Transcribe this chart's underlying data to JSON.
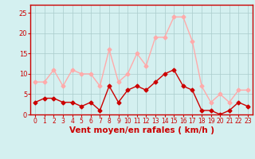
{
  "hours": [
    0,
    1,
    2,
    3,
    4,
    5,
    6,
    7,
    8,
    9,
    10,
    11,
    12,
    13,
    14,
    15,
    16,
    17,
    18,
    19,
    20,
    21,
    22,
    23
  ],
  "wind_avg": [
    3,
    4,
    4,
    3,
    3,
    2,
    3,
    1,
    7,
    3,
    6,
    7,
    6,
    8,
    10,
    11,
    7,
    6,
    1,
    1,
    0,
    1,
    3,
    2
  ],
  "wind_gust": [
    8,
    8,
    11,
    7,
    11,
    10,
    10,
    7,
    16,
    8,
    10,
    15,
    12,
    19,
    19,
    24,
    24,
    18,
    7,
    3,
    5,
    3,
    6,
    6
  ],
  "avg_color": "#cc0000",
  "gust_color": "#ffaaaa",
  "background_color": "#d4f0f0",
  "grid_color": "#aacccc",
  "xlabel": "Vent moyen/en rafales ( km/h )",
  "xlabel_color": "#cc0000",
  "tick_color": "#cc0000",
  "spine_color": "#cc0000",
  "ylim": [
    0,
    27
  ],
  "yticks": [
    0,
    5,
    10,
    15,
    20,
    25
  ],
  "markersize": 2.5,
  "linewidth": 1.0,
  "tick_fontsize": 5.5,
  "xlabel_fontsize": 7.5
}
